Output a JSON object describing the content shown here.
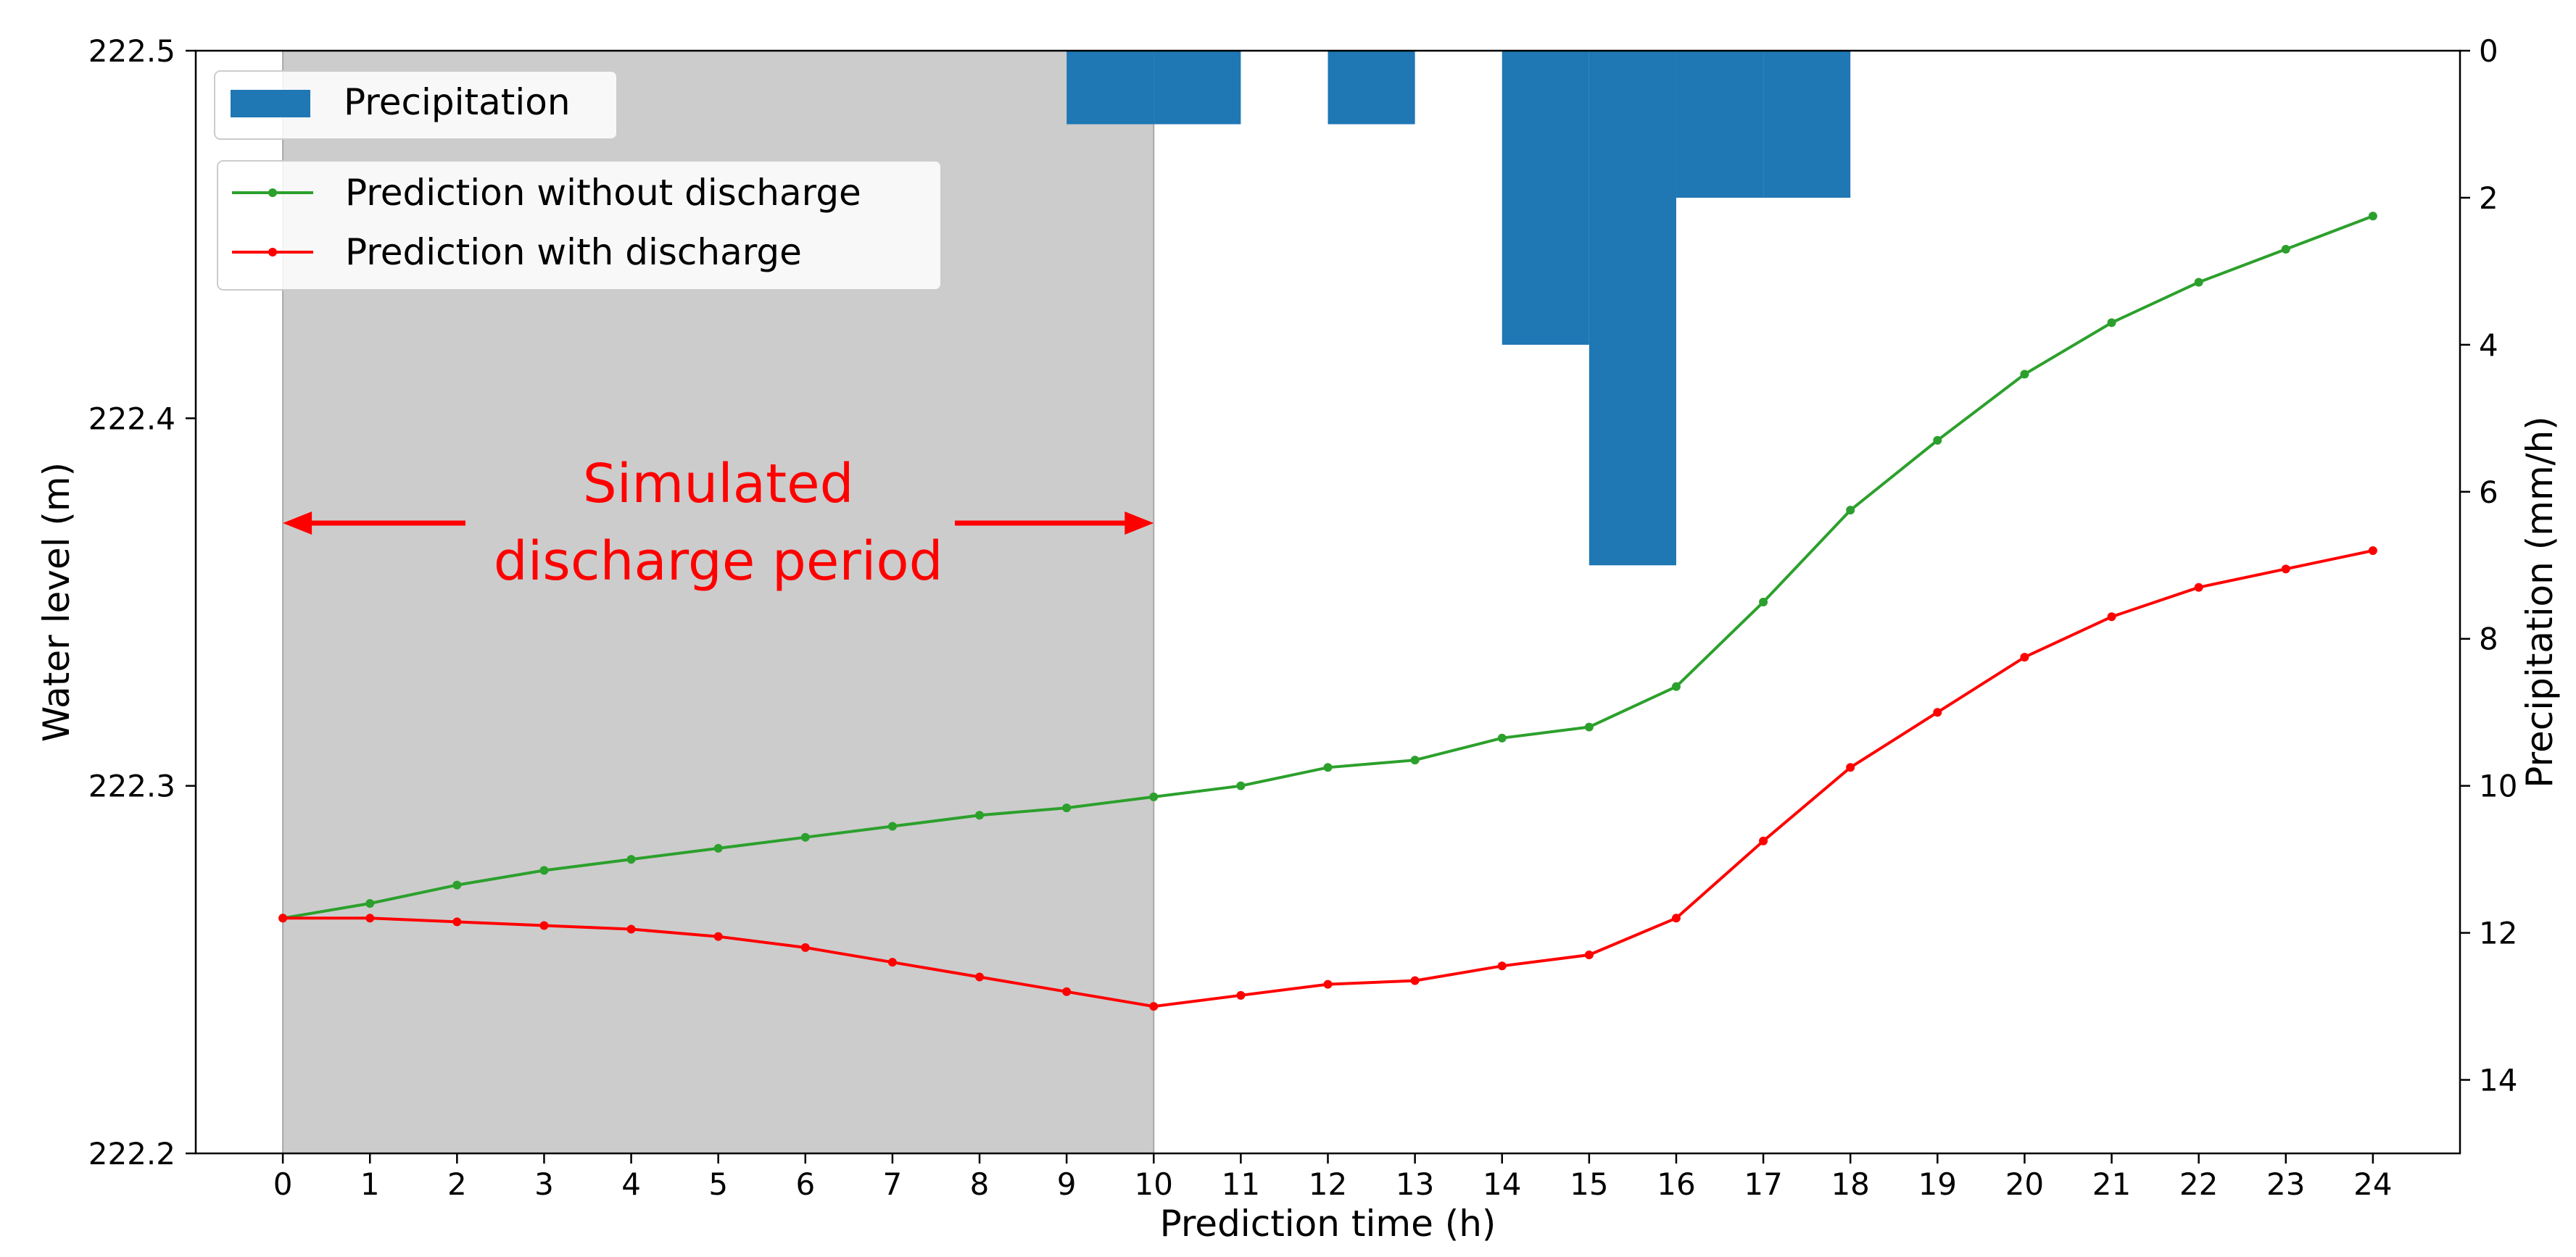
{
  "chart_data": {
    "type": "line",
    "xlabel": "Prediction time (h)",
    "ylabel": "Water level (m)",
    "y2label": "Precipitation (mm/h)",
    "xlim": [
      -1,
      25
    ],
    "ylim": [
      222.2,
      222.5
    ],
    "y2lim": [
      15,
      0
    ],
    "x_ticks": [
      0,
      1,
      2,
      3,
      4,
      5,
      6,
      7,
      8,
      9,
      10,
      11,
      12,
      13,
      14,
      15,
      16,
      17,
      18,
      19,
      20,
      21,
      22,
      23,
      24
    ],
    "y_ticks": [
      "222.2",
      "222.3",
      "222.4",
      "222.5"
    ],
    "y2_ticks": [
      "0",
      "2",
      "4",
      "6",
      "8",
      "10",
      "12",
      "14"
    ],
    "grid": false,
    "legend_position": "top-left",
    "shaded_region": {
      "x_start": 0,
      "x_end": 10,
      "color": "#cccccc"
    },
    "annotation": {
      "lines": [
        "Simulated",
        "discharge period"
      ],
      "color": "#ff0000",
      "arrow_from_x": 0,
      "arrow_to_x": 10
    },
    "bars": {
      "name": "Precipitation",
      "color": "#1f77b4",
      "bins": [
        {
          "x_start": 9,
          "x_end": 10,
          "value": 1
        },
        {
          "x_start": 10,
          "x_end": 11,
          "value": 1
        },
        {
          "x_start": 12,
          "x_end": 13,
          "value": 1
        },
        {
          "x_start": 14,
          "x_end": 15,
          "value": 4
        },
        {
          "x_start": 15,
          "x_end": 16,
          "value": 7
        },
        {
          "x_start": 16,
          "x_end": 17,
          "value": 2
        },
        {
          "x_start": 17,
          "x_end": 18,
          "value": 2
        }
      ]
    },
    "series": [
      {
        "name": "Prediction without discharge",
        "color": "#2ca02c",
        "x": [
          0,
          1,
          2,
          3,
          4,
          5,
          6,
          7,
          8,
          9,
          10,
          11,
          12,
          13,
          14,
          15,
          16,
          17,
          18,
          19,
          20,
          21,
          22,
          23,
          24
        ],
        "values": [
          222.264,
          222.268,
          222.273,
          222.277,
          222.28,
          222.283,
          222.286,
          222.289,
          222.292,
          222.294,
          222.297,
          222.3,
          222.305,
          222.307,
          222.313,
          222.316,
          222.327,
          222.35,
          222.375,
          222.394,
          222.412,
          222.426,
          222.437,
          222.446,
          222.455
        ]
      },
      {
        "name": "Prediction with discharge",
        "color": "#ff0000",
        "x": [
          0,
          1,
          2,
          3,
          4,
          5,
          6,
          7,
          8,
          9,
          10,
          11,
          12,
          13,
          14,
          15,
          16,
          17,
          18,
          19,
          20,
          21,
          22,
          23,
          24
        ],
        "values": [
          222.264,
          222.264,
          222.263,
          222.262,
          222.261,
          222.259,
          222.256,
          222.252,
          222.248,
          222.244,
          222.24,
          222.243,
          222.246,
          222.247,
          222.251,
          222.254,
          222.264,
          222.285,
          222.305,
          222.32,
          222.335,
          222.346,
          222.354,
          222.359,
          222.364
        ]
      }
    ]
  }
}
